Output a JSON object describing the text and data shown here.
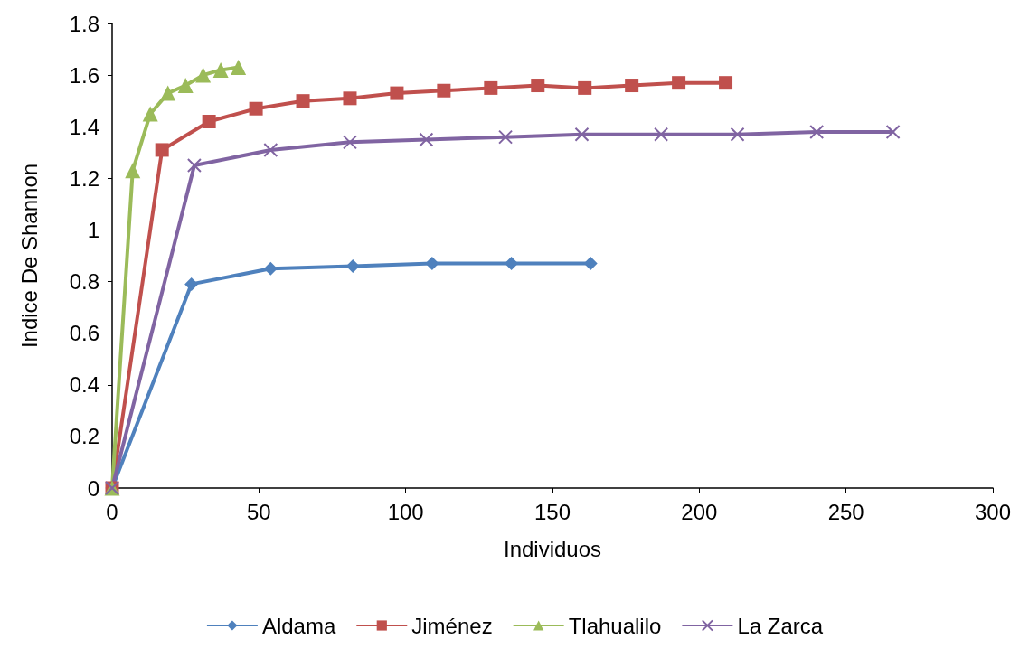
{
  "chart_data": {
    "type": "line",
    "xlabel": "Individuos",
    "ylabel": "Indice De Shannon",
    "xlim": [
      0,
      300
    ],
    "xticks": [
      0,
      50,
      100,
      150,
      200,
      250,
      300
    ],
    "ylim": [
      0,
      1.8
    ],
    "yticks": [
      0,
      0.2,
      0.4,
      0.6,
      0.8,
      1,
      1.2,
      1.4,
      1.6,
      1.8
    ],
    "grid": false,
    "legend": "bottom",
    "series": [
      {
        "name": "Aldama",
        "color": "#4f81bd",
        "marker": "diamond",
        "x": [
          0,
          27,
          54,
          82,
          109,
          136,
          163
        ],
        "values": [
          0,
          0.79,
          0.85,
          0.86,
          0.87,
          0.87,
          0.87
        ]
      },
      {
        "name": "Jiménez",
        "color": "#c0504d",
        "marker": "square",
        "x": [
          0,
          17,
          33,
          49,
          65,
          81,
          97,
          113,
          129,
          145,
          161,
          177,
          193,
          209
        ],
        "values": [
          0,
          1.31,
          1.42,
          1.47,
          1.5,
          1.51,
          1.53,
          1.54,
          1.55,
          1.56,
          1.55,
          1.56,
          1.57,
          1.57
        ]
      },
      {
        "name": "Tlahualilo",
        "color": "#9bbb59",
        "marker": "triangle",
        "x": [
          0,
          7,
          13,
          19,
          25,
          31,
          37,
          43
        ],
        "values": [
          0,
          1.23,
          1.45,
          1.53,
          1.56,
          1.6,
          1.62,
          1.63
        ]
      },
      {
        "name": "La Zarca",
        "color": "#8064a2",
        "marker": "cross",
        "x": [
          0,
          28,
          54,
          81,
          107,
          134,
          160,
          187,
          213,
          240,
          266
        ],
        "values": [
          0,
          1.25,
          1.31,
          1.34,
          1.35,
          1.36,
          1.37,
          1.37,
          1.37,
          1.38,
          1.38
        ]
      }
    ]
  }
}
